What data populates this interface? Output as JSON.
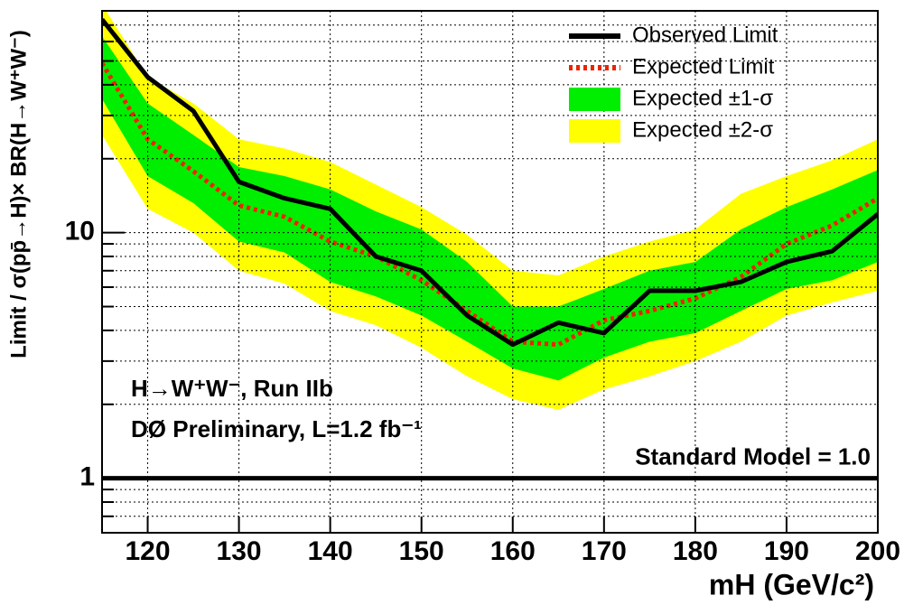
{
  "chart_data": {
    "type": "line",
    "x_label": "mH (GeV/c²)",
    "y_label": "Limit / σ(pp̄→H)× BR(H→W⁺W⁻)",
    "log_y": true,
    "grid": true,
    "legend": "top-right",
    "x": [
      115,
      120,
      125,
      130,
      135,
      140,
      145,
      150,
      155,
      160,
      165,
      170,
      175,
      180,
      185,
      190,
      195,
      200
    ],
    "xlim": [
      115,
      200
    ],
    "xticks": [
      120,
      130,
      140,
      150,
      160,
      170,
      180,
      190,
      200
    ],
    "ylim": [
      0.6,
      80
    ],
    "yticks": [
      1,
      10
    ],
    "y_minor_ticks": [
      0.7,
      0.8,
      0.9,
      2,
      3,
      4,
      5,
      6,
      7,
      8,
      9,
      20,
      30,
      40,
      50,
      60,
      70
    ],
    "bands": [
      {
        "name": "Expected ±2-σ",
        "color": "#ffff00",
        "upper": [
          85,
          43,
          33.6,
          24,
          22,
          19.4,
          15.7,
          12.7,
          9.8,
          7.0,
          6.7,
          8.0,
          9.2,
          10.3,
          14.4,
          17,
          19.7,
          24
        ],
        "lower": [
          25,
          12.5,
          10,
          7.0,
          6.2,
          4.8,
          4.2,
          3.4,
          2.6,
          2.1,
          1.9,
          2.3,
          2.6,
          3.0,
          3.6,
          4.6,
          5.2,
          5.8
        ]
      },
      {
        "name": "Expected ±1-σ",
        "color": "#00ee00",
        "upper": [
          63,
          33.6,
          25,
          18.5,
          17,
          15,
          12.2,
          10.3,
          7.6,
          5.0,
          5.0,
          5.9,
          7.0,
          7.6,
          10.3,
          12.7,
          15,
          18
        ],
        "lower": [
          35,
          17,
          13.2,
          9.2,
          8.3,
          6.3,
          5.5,
          4.6,
          3.6,
          2.8,
          2.5,
          3.1,
          3.6,
          3.9,
          4.8,
          5.9,
          6.4,
          7.6
        ]
      }
    ],
    "series": [
      {
        "name": "Expected Limit",
        "color": "#ee2200",
        "dashed": true,
        "values": [
          49,
          24,
          17.8,
          12.9,
          11.6,
          9.2,
          8.0,
          6.4,
          4.8,
          3.6,
          3.5,
          4.4,
          4.8,
          5.4,
          6.6,
          9.0,
          10.7,
          13.8
        ]
      },
      {
        "name": "Observed Limit",
        "color": "#000000",
        "dashed": false,
        "values": [
          73.8,
          43,
          31.3,
          16.1,
          13.8,
          12.5,
          8.0,
          7.0,
          4.6,
          3.5,
          4.3,
          3.9,
          5.8,
          5.8,
          6.3,
          7.6,
          8.4,
          11.9
        ]
      }
    ],
    "reference_line": 1,
    "reference_label": "Standard Model = 1.0",
    "annotations": [
      "H→W⁺W⁻, Run IIb",
      "DØ Preliminary, L=1.2 fb⁻¹"
    ]
  }
}
